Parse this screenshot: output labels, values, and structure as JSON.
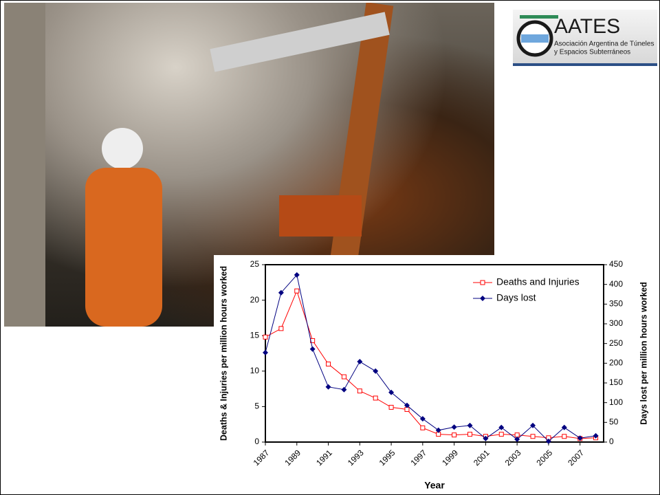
{
  "logo": {
    "name": "AATES",
    "subtitle_line1": "Asociación Argentina de Túneles",
    "subtitle_line2": "y Espacios Subterráneos"
  },
  "chart_data": {
    "type": "line",
    "x_label": "Year",
    "y_label": "Deaths & Injuries per million hours worked",
    "y2_label": "Days lost per million hours worked",
    "x": [
      1987,
      1988,
      1989,
      1990,
      1991,
      1992,
      1993,
      1994,
      1995,
      1996,
      1997,
      1998,
      1999,
      2000,
      2001,
      2002,
      2003,
      2004,
      2005,
      2006,
      2007,
      2008
    ],
    "xlim": [
      1987,
      2008.5
    ],
    "xticks": [
      1987,
      1989,
      1991,
      1993,
      1995,
      1997,
      1999,
      2001,
      2003,
      2005,
      2007
    ],
    "ylim": [
      0,
      25
    ],
    "yticks": [
      0,
      5,
      10,
      15,
      20,
      25
    ],
    "y2lim": [
      0,
      450
    ],
    "y2ticks": [
      0,
      50,
      100,
      150,
      200,
      250,
      300,
      350,
      400,
      450
    ],
    "legend": "upper right",
    "series": [
      {
        "name": "Deaths and Injuries",
        "color": "#ff0000",
        "marker": "square",
        "values": [
          14.8,
          16.0,
          21.3,
          14.3,
          11.0,
          9.2,
          7.2,
          6.2,
          4.9,
          4.6,
          2.0,
          1.1,
          1.0,
          1.1,
          0.8,
          1.1,
          1.0,
          0.8,
          0.6,
          0.8,
          0.5,
          0.6
        ]
      },
      {
        "name": "Days lost",
        "color": "#000080",
        "marker": "diamond",
        "axis": "y2",
        "values": [
          227,
          379,
          424,
          236,
          140,
          133,
          204,
          180,
          126,
          93,
          59,
          30,
          38,
          42,
          9,
          37,
          7,
          42,
          2,
          37,
          10,
          16
        ]
      }
    ]
  }
}
